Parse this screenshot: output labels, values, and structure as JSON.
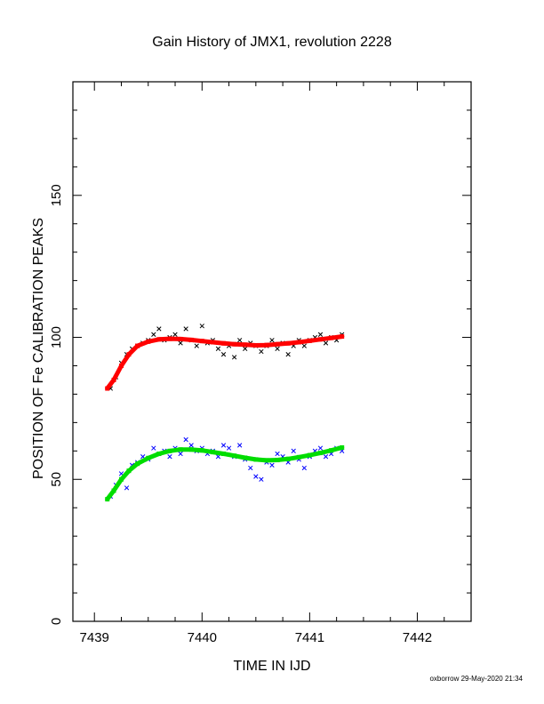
{
  "chart_data": {
    "type": "scatter",
    "title": "Gain History of JMX1, revolution 2228",
    "xlabel": "TIME IN IJD",
    "ylabel": "POSITION OF Fe CALIBRATION PEAKS",
    "xlim": [
      7438.8,
      7442.5
    ],
    "ylim": [
      0,
      190
    ],
    "x_ticks": [
      7439,
      7440,
      7441,
      7442
    ],
    "y_ticks": [
      0,
      50,
      100,
      150
    ],
    "grid": false,
    "footer": "oxborrow 29-May-2020 21:34",
    "series": [
      {
        "name": "",
        "marker": "x",
        "color": "#000000",
        "points": [
          [
            7439.15,
            82
          ],
          [
            7439.2,
            86
          ],
          [
            7439.25,
            91
          ],
          [
            7439.3,
            94
          ],
          [
            7439.35,
            96
          ],
          [
            7439.4,
            97
          ],
          [
            7439.45,
            98
          ],
          [
            7439.5,
            99
          ],
          [
            7439.55,
            101
          ],
          [
            7439.6,
            103
          ],
          [
            7439.65,
            99
          ],
          [
            7439.7,
            100
          ],
          [
            7439.75,
            101
          ],
          [
            7439.8,
            98
          ],
          [
            7439.85,
            103
          ],
          [
            7439.9,
            99
          ],
          [
            7439.95,
            97
          ],
          [
            7440.0,
            104
          ],
          [
            7440.05,
            98
          ],
          [
            7440.1,
            99
          ],
          [
            7440.15,
            96
          ],
          [
            7440.2,
            94
          ],
          [
            7440.25,
            97
          ],
          [
            7440.3,
            93
          ],
          [
            7440.35,
            99
          ],
          [
            7440.4,
            96
          ],
          [
            7440.45,
            98
          ],
          [
            7440.5,
            97
          ],
          [
            7440.55,
            95
          ],
          [
            7440.6,
            97
          ],
          [
            7440.65,
            99
          ],
          [
            7440.7,
            96
          ],
          [
            7440.75,
            98
          ],
          [
            7440.8,
            94
          ],
          [
            7440.85,
            97
          ],
          [
            7440.9,
            99
          ],
          [
            7440.95,
            97
          ],
          [
            7441.0,
            99
          ],
          [
            7441.05,
            100
          ],
          [
            7441.1,
            101
          ],
          [
            7441.15,
            98
          ],
          [
            7441.2,
            100
          ],
          [
            7441.25,
            99
          ],
          [
            7441.3,
            101
          ]
        ]
      },
      {
        "name": "",
        "marker": "x",
        "color": "#0000ff",
        "points": [
          [
            7439.15,
            44
          ],
          [
            7439.2,
            48
          ],
          [
            7439.25,
            52
          ],
          [
            7439.3,
            47
          ],
          [
            7439.35,
            55
          ],
          [
            7439.4,
            56
          ],
          [
            7439.45,
            58
          ],
          [
            7439.5,
            57
          ],
          [
            7439.55,
            61
          ],
          [
            7439.6,
            59
          ],
          [
            7439.65,
            60
          ],
          [
            7439.7,
            58
          ],
          [
            7439.75,
            61
          ],
          [
            7439.8,
            59
          ],
          [
            7439.85,
            64
          ],
          [
            7439.9,
            62
          ],
          [
            7439.95,
            60
          ],
          [
            7440.0,
            61
          ],
          [
            7440.05,
            59
          ],
          [
            7440.1,
            60
          ],
          [
            7440.15,
            58
          ],
          [
            7440.2,
            62
          ],
          [
            7440.25,
            61
          ],
          [
            7440.3,
            58
          ],
          [
            7440.35,
            62
          ],
          [
            7440.4,
            57
          ],
          [
            7440.45,
            54
          ],
          [
            7440.5,
            51
          ],
          [
            7440.55,
            50
          ],
          [
            7440.6,
            56
          ],
          [
            7440.65,
            55
          ],
          [
            7440.7,
            59
          ],
          [
            7440.75,
            58
          ],
          [
            7440.8,
            56
          ],
          [
            7440.85,
            60
          ],
          [
            7440.9,
            57
          ],
          [
            7440.95,
            54
          ],
          [
            7441.0,
            58
          ],
          [
            7441.05,
            60
          ],
          [
            7441.1,
            61
          ],
          [
            7441.15,
            58
          ],
          [
            7441.2,
            59
          ],
          [
            7441.25,
            61
          ],
          [
            7441.3,
            60
          ]
        ]
      },
      {
        "name": "",
        "marker": "curve",
        "color": "#ff0000",
        "points": [
          [
            7439.12,
            82
          ],
          [
            7439.18,
            85
          ],
          [
            7439.25,
            90
          ],
          [
            7439.32,
            94
          ],
          [
            7439.4,
            97
          ],
          [
            7439.5,
            98.5
          ],
          [
            7439.6,
            99.3
          ],
          [
            7439.7,
            99.5
          ],
          [
            7439.8,
            99.4
          ],
          [
            7439.9,
            99.1
          ],
          [
            7440.0,
            98.7
          ],
          [
            7440.1,
            98.3
          ],
          [
            7440.2,
            97.9
          ],
          [
            7440.3,
            97.6
          ],
          [
            7440.4,
            97.4
          ],
          [
            7440.5,
            97.2
          ],
          [
            7440.6,
            97.3
          ],
          [
            7440.7,
            97.6
          ],
          [
            7440.8,
            97.9
          ],
          [
            7440.9,
            98.3
          ],
          [
            7441.0,
            98.8
          ],
          [
            7441.1,
            99.3
          ],
          [
            7441.2,
            99.8
          ],
          [
            7441.3,
            100.3
          ]
        ]
      },
      {
        "name": "",
        "marker": "curve",
        "color": "#00dd00",
        "points": [
          [
            7439.12,
            43
          ],
          [
            7439.18,
            46
          ],
          [
            7439.25,
            50
          ],
          [
            7439.32,
            53
          ],
          [
            7439.4,
            55.5
          ],
          [
            7439.5,
            57.5
          ],
          [
            7439.6,
            59
          ],
          [
            7439.7,
            60
          ],
          [
            7439.8,
            60.5
          ],
          [
            7439.9,
            60.5
          ],
          [
            7440.0,
            60.2
          ],
          [
            7440.1,
            59.6
          ],
          [
            7440.2,
            59
          ],
          [
            7440.3,
            58.3
          ],
          [
            7440.4,
            57.6
          ],
          [
            7440.5,
            57
          ],
          [
            7440.6,
            56.7
          ],
          [
            7440.7,
            56.8
          ],
          [
            7440.8,
            57.2
          ],
          [
            7440.9,
            57.8
          ],
          [
            7441.0,
            58.5
          ],
          [
            7441.1,
            59.3
          ],
          [
            7441.2,
            60.2
          ],
          [
            7441.3,
            61.2
          ]
        ]
      }
    ]
  }
}
